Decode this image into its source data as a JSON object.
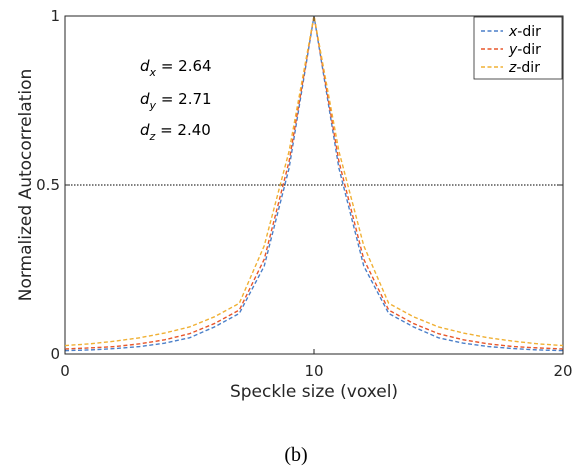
{
  "caption": "(b)",
  "chart_data": {
    "type": "line",
    "xlabel": "Speckle size (voxel)",
    "ylabel": "Normalized Autocorrelation",
    "xlim": [
      0,
      20
    ],
    "ylim": [
      0,
      1
    ],
    "x_ticks": [
      "0",
      "10",
      "20"
    ],
    "y_ticks": [
      "0",
      "0.5",
      "1"
    ],
    "reference_line": {
      "y": 0.5,
      "style": "dotted",
      "color": "#000000"
    },
    "legend_position": "top-right",
    "annotations": [
      {
        "prefix": "d",
        "sub": "x",
        "text": " = 2.64"
      },
      {
        "prefix": "d",
        "sub": "y",
        "text": " = 2.71"
      },
      {
        "prefix": "d",
        "sub": "z",
        "text": " = 2.40"
      }
    ],
    "x": [
      0,
      1,
      2,
      3,
      4,
      5,
      6,
      7,
      8,
      9,
      10,
      11,
      12,
      13,
      14,
      15,
      16,
      17,
      18,
      19,
      20
    ],
    "series": [
      {
        "name_var": "x",
        "name_suffix": "-dir",
        "color": "#4a7fc9",
        "values": [
          0.01,
          0.012,
          0.016,
          0.022,
          0.032,
          0.048,
          0.08,
          0.12,
          0.26,
          0.55,
          1.0,
          0.55,
          0.26,
          0.12,
          0.08,
          0.048,
          0.032,
          0.022,
          0.016,
          0.012,
          0.01
        ]
      },
      {
        "name_var": "y",
        "name_suffix": "-dir",
        "color": "#e8562a",
        "values": [
          0.015,
          0.018,
          0.022,
          0.03,
          0.042,
          0.06,
          0.09,
          0.13,
          0.28,
          0.57,
          1.0,
          0.57,
          0.28,
          0.13,
          0.09,
          0.06,
          0.042,
          0.03,
          0.022,
          0.018,
          0.015
        ]
      },
      {
        "name_var": "z",
        "name_suffix": "-dir",
        "color": "#f0b033",
        "values": [
          0.025,
          0.03,
          0.038,
          0.048,
          0.062,
          0.08,
          0.11,
          0.15,
          0.32,
          0.6,
          1.0,
          0.6,
          0.32,
          0.15,
          0.11,
          0.08,
          0.062,
          0.048,
          0.038,
          0.03,
          0.025
        ]
      }
    ]
  }
}
